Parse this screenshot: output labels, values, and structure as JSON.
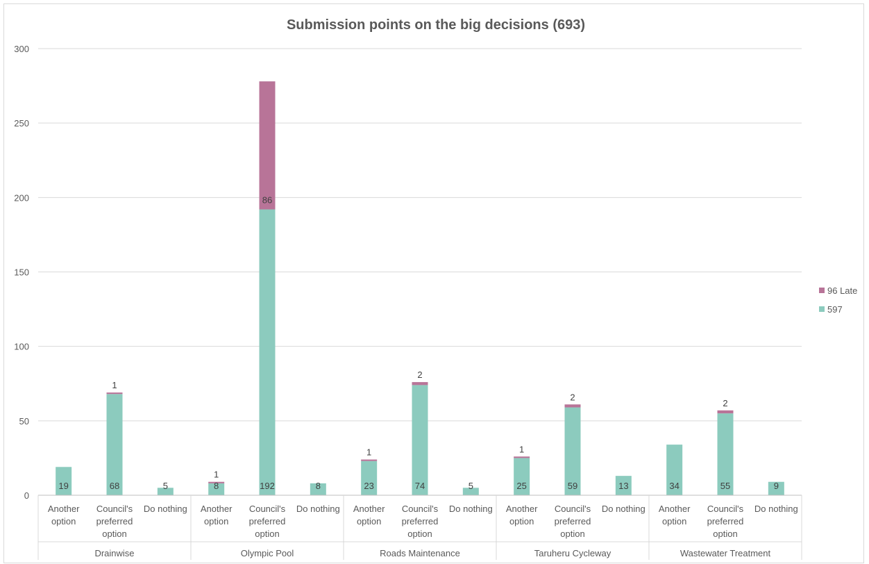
{
  "chart_data": {
    "type": "bar",
    "stacked": true,
    "title": "Submission points on the big decisions (693)",
    "ylim": [
      0,
      300
    ],
    "yticks": [
      0,
      50,
      100,
      150,
      200,
      250,
      300
    ],
    "grid": true,
    "legend_position": "right",
    "groups": [
      "Drainwise",
      "Olympic Pool",
      "Roads Maintenance",
      "Taruheru Cycleway",
      "Wastewater Treatment"
    ],
    "categories": [
      [
        "Another",
        "option"
      ],
      [
        "Council's",
        "preferred",
        "option"
      ],
      [
        "Do nothing"
      ],
      [
        "Another",
        "option"
      ],
      [
        "Council's",
        "preferred",
        "option"
      ],
      [
        "Do nothing"
      ],
      [
        "Another",
        "option"
      ],
      [
        "Council's",
        "preferred",
        "option"
      ],
      [
        "Do nothing"
      ],
      [
        "Another",
        "option"
      ],
      [
        "Council's",
        "preferred",
        "option"
      ],
      [
        "Do nothing"
      ],
      [
        "Another",
        "option"
      ],
      [
        "Council's",
        "preferred",
        "option"
      ],
      [
        "Do nothing"
      ]
    ],
    "series": [
      {
        "name": "597",
        "color": "#8ccbbe",
        "values": [
          19,
          68,
          5,
          8,
          192,
          8,
          23,
          74,
          5,
          25,
          59,
          13,
          34,
          55,
          9
        ],
        "labels": [
          "19",
          "68",
          "5",
          "8",
          "192",
          "8",
          "23",
          "74",
          "5",
          "25",
          "59",
          "13",
          "34",
          "55",
          "9"
        ]
      },
      {
        "name": "96 Late",
        "color": "#b87498",
        "values": [
          0,
          1,
          0,
          1,
          86,
          0,
          1,
          2,
          0,
          1,
          2,
          0,
          0,
          2,
          0
        ],
        "labels": [
          "",
          "1",
          "",
          "1",
          "86",
          "",
          "1",
          "2",
          "",
          "1",
          "2",
          "",
          "",
          "2",
          ""
        ]
      }
    ],
    "legend": [
      {
        "name": "96 Late",
        "color": "#b87498"
      },
      {
        "name": "597",
        "color": "#8ccbbe"
      }
    ]
  }
}
